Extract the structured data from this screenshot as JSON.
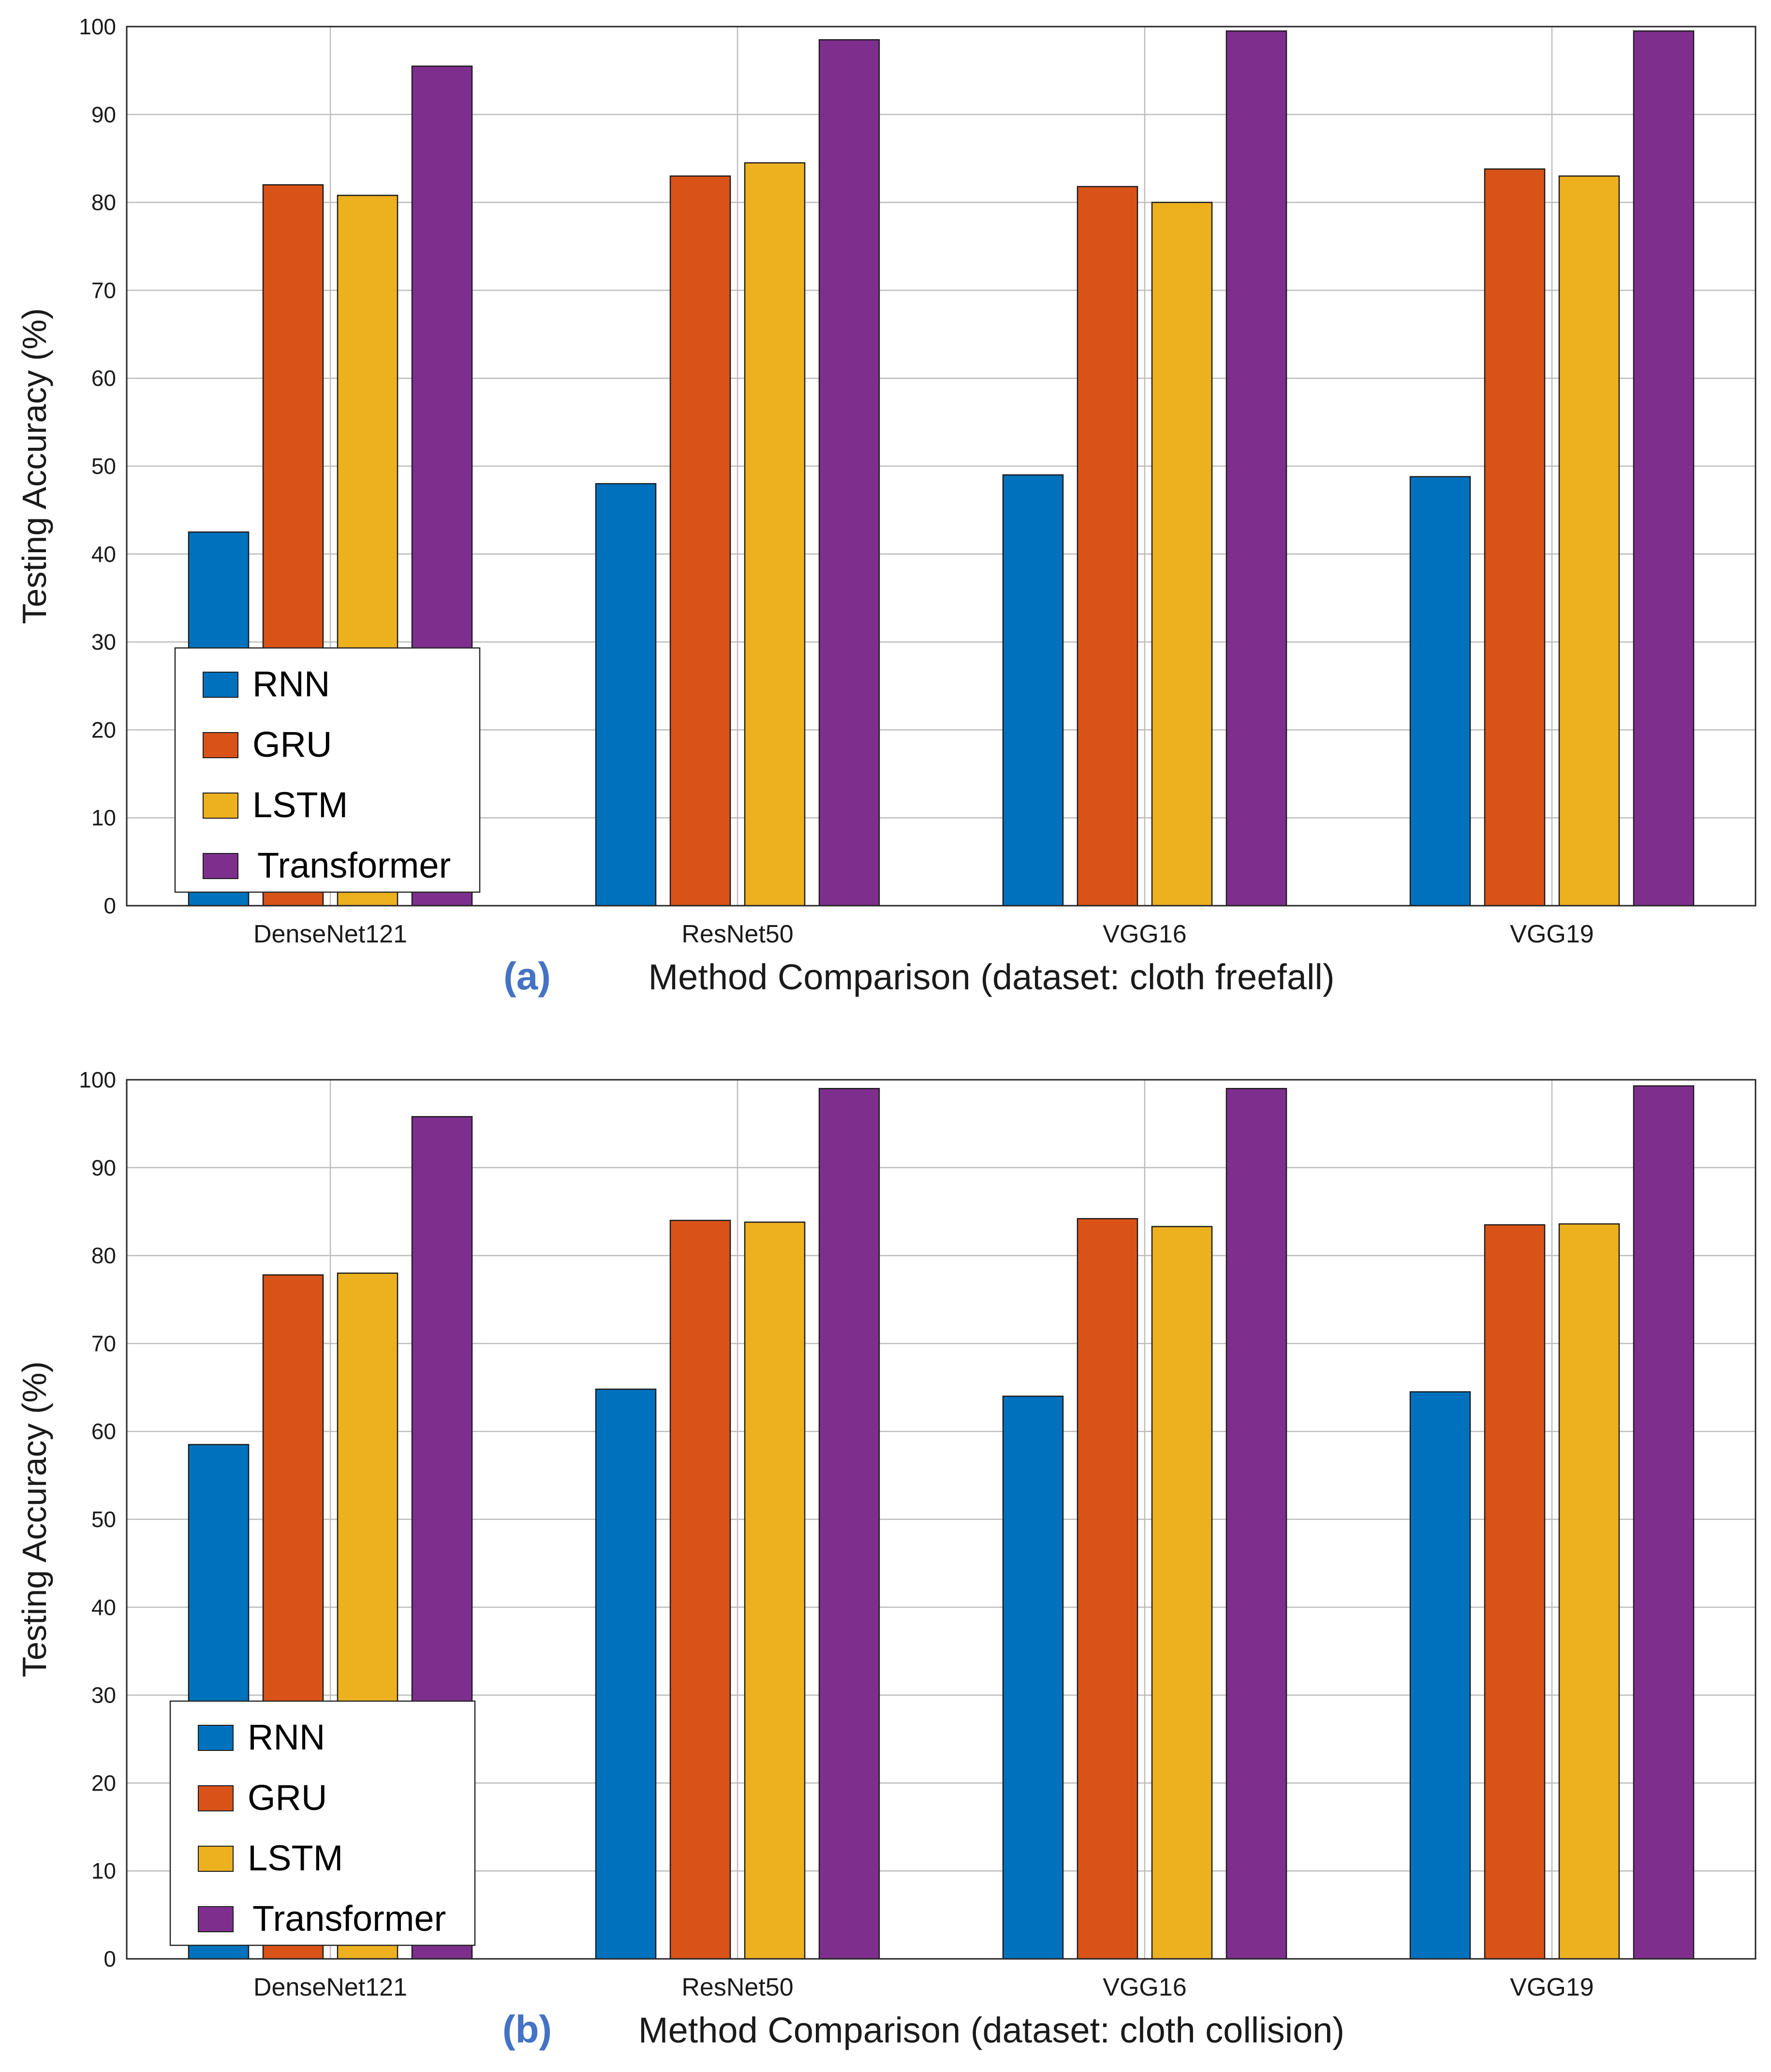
{
  "chart_data": [
    {
      "type": "bar",
      "panel_label": "(a)",
      "xlabel": "Method Comparison (dataset: cloth freefall)",
      "ylabel": "Testing Accuracy (%)",
      "ylim": [
        0,
        100
      ],
      "yticks": [
        0,
        10,
        20,
        30,
        40,
        50,
        60,
        70,
        80,
        90,
        100
      ],
      "grid": true,
      "legend_position": "bottom-left",
      "categories": [
        "DenseNet121",
        "ResNet50",
        "VGG16",
        "VGG19"
      ],
      "series": [
        {
          "name": "RNN",
          "color": "#0072bd",
          "values": [
            42.5,
            48.0,
            49.0,
            48.8
          ]
        },
        {
          "name": "GRU",
          "color": "#d95319",
          "values": [
            82.0,
            83.0,
            81.8,
            83.8
          ]
        },
        {
          "name": "LSTM",
          "color": "#edb120",
          "values": [
            80.8,
            84.5,
            80.0,
            83.0
          ]
        },
        {
          "name": "Transformer",
          "color": "#7e2f8e",
          "values": [
            95.5,
            98.5,
            99.5,
            99.5
          ]
        }
      ]
    },
    {
      "type": "bar",
      "panel_label": "(b)",
      "xlabel": "Method Comparison (dataset: cloth collision)",
      "ylabel": "Testing Accuracy (%)",
      "ylim": [
        0,
        100
      ],
      "yticks": [
        0,
        10,
        20,
        30,
        40,
        50,
        60,
        70,
        80,
        90,
        100
      ],
      "grid": true,
      "legend_position": "bottom-left",
      "categories": [
        "DenseNet121",
        "ResNet50",
        "VGG16",
        "VGG19"
      ],
      "series": [
        {
          "name": "RNN",
          "color": "#0072bd",
          "values": [
            58.5,
            64.8,
            64.0,
            64.5
          ]
        },
        {
          "name": "GRU",
          "color": "#d95319",
          "values": [
            77.8,
            84.0,
            84.2,
            83.5
          ]
        },
        {
          "name": "LSTM",
          "color": "#edb120",
          "values": [
            78.0,
            83.8,
            83.3,
            83.6
          ]
        },
        {
          "name": "Transformer",
          "color": "#7e2f8e",
          "values": [
            95.8,
            99.0,
            99.0,
            99.3
          ]
        }
      ]
    }
  ]
}
